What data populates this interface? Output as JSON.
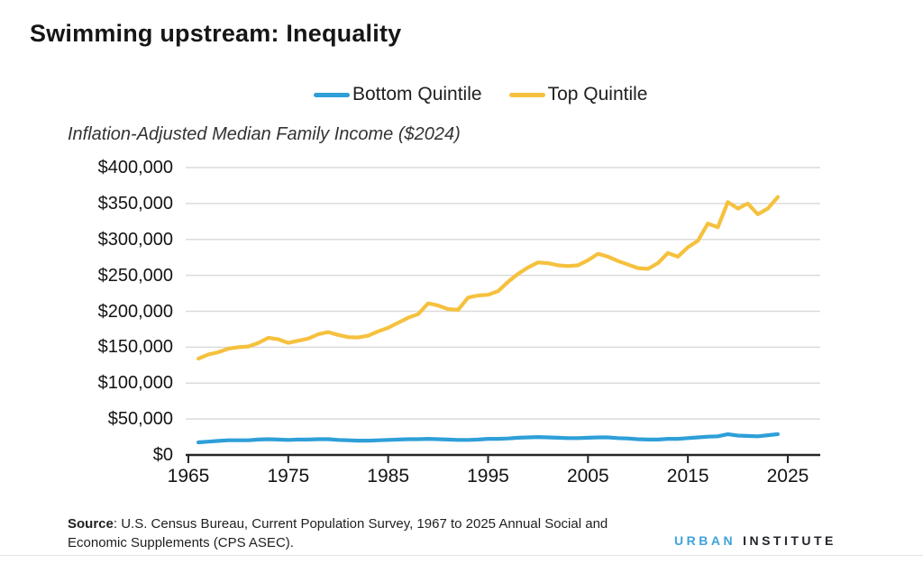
{
  "page": {
    "title": "Swimming upstream: Inequality",
    "source_label": "Source",
    "source_text": ": U.S. Census Bureau, Current Population Survey, 1967 to 2025 Annual Social and Economic Supplements (CPS ASEC).",
    "logo": {
      "part1": "URBAN",
      "part2": "INSTITUTE"
    }
  },
  "chart_data": {
    "type": "line",
    "title": "Inflation-Adjusted Median Family Income ($2024)",
    "x_label": "",
    "y_label": "",
    "grid": "horizontal",
    "legend_position": "top-center",
    "xlim": [
      1964.7,
      2028.3
    ],
    "ylim": [
      0,
      400000
    ],
    "x_ticks": [
      1965,
      1975,
      1985,
      1995,
      2005,
      2015,
      2025
    ],
    "y_ticks": [
      0,
      50000,
      100000,
      150000,
      200000,
      250000,
      300000,
      350000,
      400000
    ],
    "y_tick_labels": [
      "$0",
      "$50,000",
      "$100,000",
      "$150,000",
      "$200,000",
      "$250,000",
      "$300,000",
      "$350,000",
      "$400,000"
    ],
    "x": [
      1966,
      1967,
      1968,
      1969,
      1970,
      1971,
      1972,
      1973,
      1974,
      1975,
      1976,
      1977,
      1978,
      1979,
      1980,
      1981,
      1982,
      1983,
      1984,
      1985,
      1986,
      1987,
      1988,
      1989,
      1990,
      1991,
      1992,
      1993,
      1994,
      1995,
      1996,
      1997,
      1998,
      1999,
      2000,
      2001,
      2002,
      2003,
      2004,
      2005,
      2006,
      2007,
      2008,
      2009,
      2010,
      2011,
      2012,
      2013,
      2014,
      2015,
      2016,
      2017,
      2018,
      2019,
      2020,
      2021,
      2022,
      2023,
      2024
    ],
    "series": [
      {
        "name": "Bottom Quintile",
        "color": "#2e9fd8",
        "values": [
          17500,
          18500,
          19500,
          20500,
          20500,
          20500,
          21500,
          22000,
          21500,
          21000,
          21500,
          21500,
          22000,
          22000,
          21000,
          20500,
          20000,
          20000,
          20500,
          21000,
          21500,
          22000,
          22000,
          22500,
          22000,
          21500,
          21000,
          21000,
          21500,
          22500,
          22500,
          23000,
          24000,
          24500,
          25000,
          24500,
          24000,
          23500,
          23500,
          24000,
          24500,
          24500,
          23500,
          23000,
          22000,
          21500,
          21500,
          22500,
          22500,
          23500,
          24500,
          25500,
          26000,
          29000,
          27000,
          26500,
          26000,
          27500,
          29000
        ]
      },
      {
        "name": "Top Quintile",
        "color": "#f5c13e",
        "values": [
          134000,
          140000,
          143000,
          148000,
          150000,
          151000,
          156000,
          163000,
          161000,
          156000,
          159000,
          162000,
          168000,
          171000,
          167000,
          164000,
          163500,
          166000,
          172000,
          177000,
          184000,
          191000,
          196000,
          211000,
          208000,
          203000,
          202000,
          219000,
          222000,
          223000,
          228000,
          241000,
          252000,
          261000,
          268000,
          267000,
          264000,
          263000,
          264000,
          271000,
          280000,
          276000,
          270000,
          265000,
          260000,
          259000,
          267000,
          281000,
          276000,
          289000,
          298000,
          322000,
          317000,
          352000,
          343000,
          350000,
          335000,
          343000,
          359000
        ]
      }
    ]
  }
}
